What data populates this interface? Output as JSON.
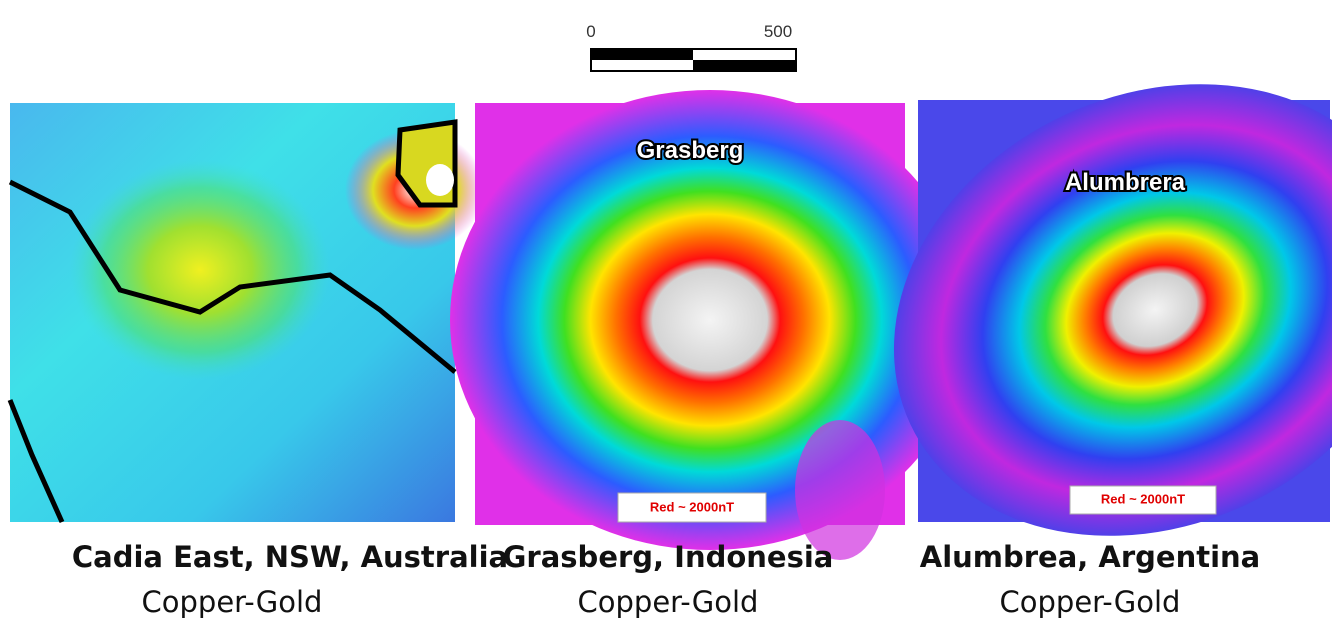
{
  "scale_bar": {
    "start_label": "0",
    "end_label": "500"
  },
  "panels": [
    {
      "title": "Cadia East, NSW, Australia",
      "subtitle": "Copper-Gold"
    },
    {
      "title": "Grasberg, Indonesia",
      "subtitle": "Copper-Gold",
      "map_label": "Grasberg",
      "legend_note": "Red ~ 2000nT"
    },
    {
      "title": "Alumbrea, Argentina",
      "subtitle": "Copper-Gold",
      "map_label": "Alumbrera",
      "legend_note": "Red ~ 2000nT"
    }
  ]
}
